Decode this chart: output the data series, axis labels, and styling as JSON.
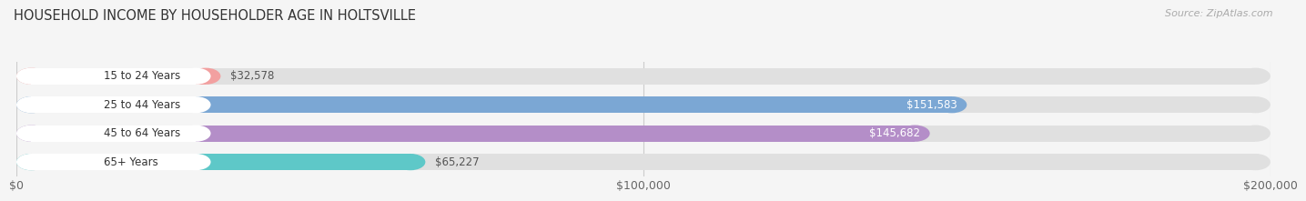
{
  "title": "HOUSEHOLD INCOME BY HOUSEHOLDER AGE IN HOLTSVILLE",
  "source": "Source: ZipAtlas.com",
  "categories": [
    "15 to 24 Years",
    "25 to 44 Years",
    "45 to 64 Years",
    "65+ Years"
  ],
  "values": [
    32578,
    151583,
    145682,
    65227
  ],
  "bar_colors": [
    "#f2a0a0",
    "#7ba7d4",
    "#b48ec8",
    "#5ec8c8"
  ],
  "bg_bar_color": "#e0e0e0",
  "label_bg_color": "#ffffff",
  "value_labels": [
    "$32,578",
    "$151,583",
    "$145,682",
    "$65,227"
  ],
  "label_inside_threshold": 80000,
  "xmax": 200000,
  "xticks": [
    0,
    100000,
    200000
  ],
  "xtick_labels": [
    "$0",
    "$100,000",
    "$200,000"
  ],
  "background_color": "#f5f5f5",
  "bar_height": 0.58,
  "title_fontsize": 10.5,
  "source_fontsize": 8,
  "tick_fontsize": 9,
  "label_fontsize": 8.5,
  "category_fontsize": 8.5
}
